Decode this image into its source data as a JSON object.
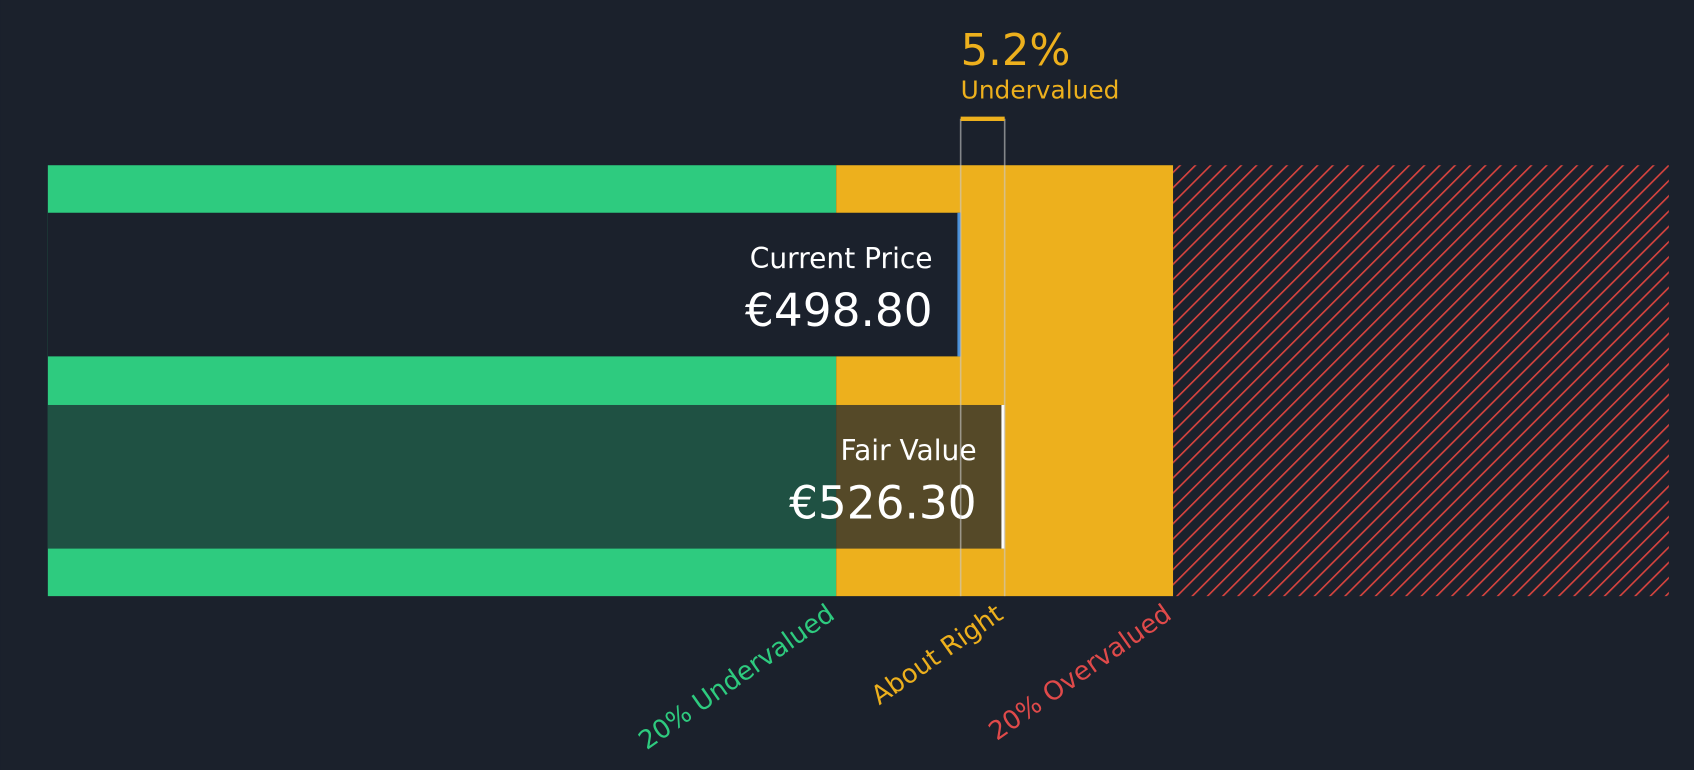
{
  "current_price": {
    "label": "Current Price",
    "value": 498.8,
    "value_label": "€498.80"
  },
  "fair_value": {
    "label": "Fair Value",
    "value": 526.3,
    "value_label": "€526.30"
  },
  "difference": {
    "value": 5.2,
    "value_label": "5.2%",
    "status": "Undervalued"
  },
  "zones": [
    "20% Undervalued",
    "About Right",
    "20% Overvalued"
  ]
}
